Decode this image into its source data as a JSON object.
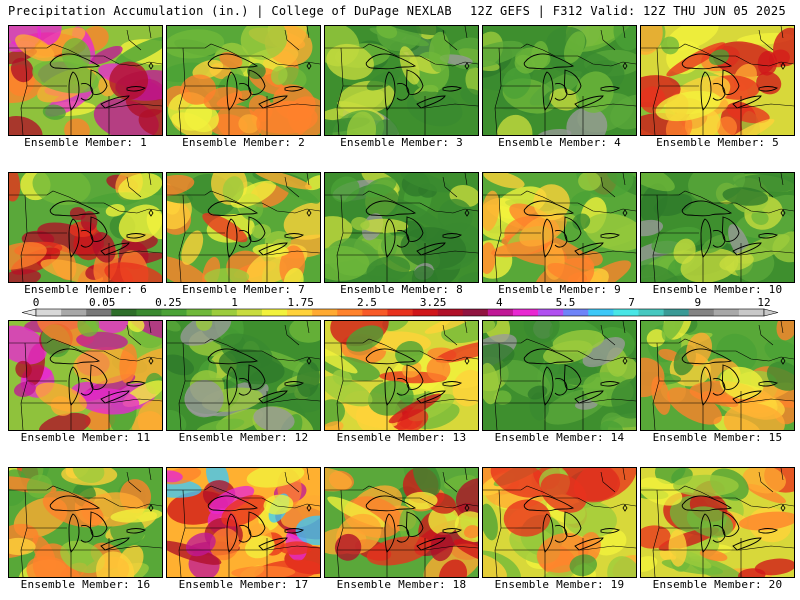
{
  "header": {
    "left_title": "Precipitation Accumulation (in.) | College of DuPage NEXLAB",
    "right_title": "12Z GEFS | F312 Valid: 12Z THU JUN 05 2025"
  },
  "colorbar": {
    "tick_labels": [
      "0",
      "0.05",
      "0.25",
      "1",
      "1.75",
      "2.5",
      "3.25",
      "4",
      "5.5",
      "7",
      "9",
      "12"
    ],
    "colors": [
      "#d8d8d8",
      "#a8a8a8",
      "#787878",
      "#2e6e2a",
      "#3a8a30",
      "#4aa236",
      "#6fb83a",
      "#9ccc3c",
      "#c8dc3e",
      "#f2f23c",
      "#ffd23a",
      "#ffaa32",
      "#ff822c",
      "#f85a28",
      "#e8321e",
      "#d0161a",
      "#b01028",
      "#901440",
      "#c01896",
      "#e828d2",
      "#b050f0",
      "#6e84f8",
      "#3cc8f8",
      "#48e6e6",
      "#46c8c0",
      "#3a9a96",
      "#848484",
      "#a8a8a8",
      "#c8c8c8"
    ]
  },
  "panels": [
    {
      "label": "Ensemble Member: 1",
      "tone": "wet-west"
    },
    {
      "label": "Ensemble Member: 2",
      "tone": "wet-south"
    },
    {
      "label": "Ensemble Member: 3",
      "tone": "dry-green"
    },
    {
      "label": "Ensemble Member: 4",
      "tone": "dry-green"
    },
    {
      "label": "Ensemble Member: 5",
      "tone": "wet-all"
    },
    {
      "label": "Ensemble Member: 6",
      "tone": "wet-band"
    },
    {
      "label": "Ensemble Member: 7",
      "tone": "wet-south"
    },
    {
      "label": "Ensemble Member: 8",
      "tone": "dry-green"
    },
    {
      "label": "Ensemble Member: 9",
      "tone": "wet-south"
    },
    {
      "label": "Ensemble Member: 10",
      "tone": "dry-green"
    },
    {
      "label": "Ensemble Member: 11",
      "tone": "wet-west"
    },
    {
      "label": "Ensemble Member: 12",
      "tone": "dry-green"
    },
    {
      "label": "Ensemble Member: 13",
      "tone": "wet-all"
    },
    {
      "label": "Ensemble Member: 14",
      "tone": "dry-green"
    },
    {
      "label": "Ensemble Member: 15",
      "tone": "wet-south"
    },
    {
      "label": "Ensemble Member: 16",
      "tone": "wet-south"
    },
    {
      "label": "Ensemble Member: 17",
      "tone": "very-wet"
    },
    {
      "label": "Ensemble Member: 18",
      "tone": "wet-band"
    },
    {
      "label": "Ensemble Member: 19",
      "tone": "wet-all"
    },
    {
      "label": "Ensemble Member: 20",
      "tone": "wet-all"
    }
  ]
}
